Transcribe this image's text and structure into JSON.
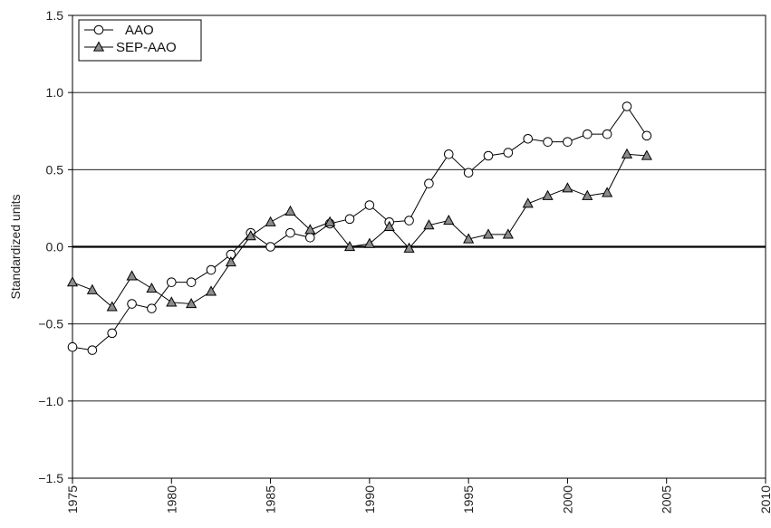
{
  "chart_data": {
    "type": "line",
    "title": "",
    "xlabel": "",
    "ylabel": "Standardized units",
    "xlim": [
      1975,
      2010
    ],
    "ylim": [
      -1.5,
      1.5
    ],
    "xticks": [
      1975,
      1980,
      1985,
      1990,
      1995,
      2000,
      2005,
      2010
    ],
    "yticks": [
      -1.5,
      -1.0,
      -0.5,
      0.0,
      0.5,
      1.0,
      1.5
    ],
    "ytick_labels": [
      "−1.5",
      "−1.0",
      "−0.5",
      "0.0",
      "0.5",
      "1.0",
      "1.5"
    ],
    "grid": "horizontal",
    "legend_position": "top-left",
    "series": [
      {
        "name": "AAO",
        "marker": "open-circle",
        "color": "#000000",
        "x": [
          1975,
          1976,
          1977,
          1978,
          1979,
          1980,
          1981,
          1982,
          1983,
          1984,
          1985,
          1986,
          1987,
          1988,
          1989,
          1990,
          1991,
          1992,
          1993,
          1994,
          1995,
          1996,
          1997,
          1998,
          1999,
          2000,
          2001,
          2002,
          2003,
          2004
        ],
        "values": [
          -0.65,
          -0.67,
          -0.56,
          -0.37,
          -0.4,
          -0.23,
          -0.23,
          -0.15,
          -0.05,
          0.09,
          0.0,
          0.09,
          0.06,
          0.15,
          0.18,
          0.27,
          0.16,
          0.17,
          0.41,
          0.6,
          0.48,
          0.59,
          0.61,
          0.7,
          0.68,
          0.68,
          0.73,
          0.73,
          0.91,
          0.72
        ]
      },
      {
        "name": "SEP-AAO",
        "marker": "filled-triangle",
        "color": "#000000",
        "marker_fill": "#8c8c8c",
        "x": [
          1975,
          1976,
          1977,
          1978,
          1979,
          1980,
          1981,
          1982,
          1983,
          1984,
          1985,
          1986,
          1987,
          1988,
          1989,
          1990,
          1991,
          1992,
          1993,
          1994,
          1995,
          1996,
          1997,
          1998,
          1999,
          2000,
          2001,
          2002,
          2003,
          2004
        ],
        "values": [
          -0.23,
          -0.28,
          -0.39,
          -0.19,
          -0.27,
          -0.36,
          -0.37,
          -0.29,
          -0.1,
          0.07,
          0.16,
          0.23,
          0.11,
          0.16,
          0.0,
          0.02,
          0.13,
          -0.01,
          0.14,
          0.17,
          0.05,
          0.08,
          0.08,
          0.28,
          0.33,
          0.38,
          0.33,
          0.35,
          0.6,
          0.59
        ]
      }
    ]
  }
}
